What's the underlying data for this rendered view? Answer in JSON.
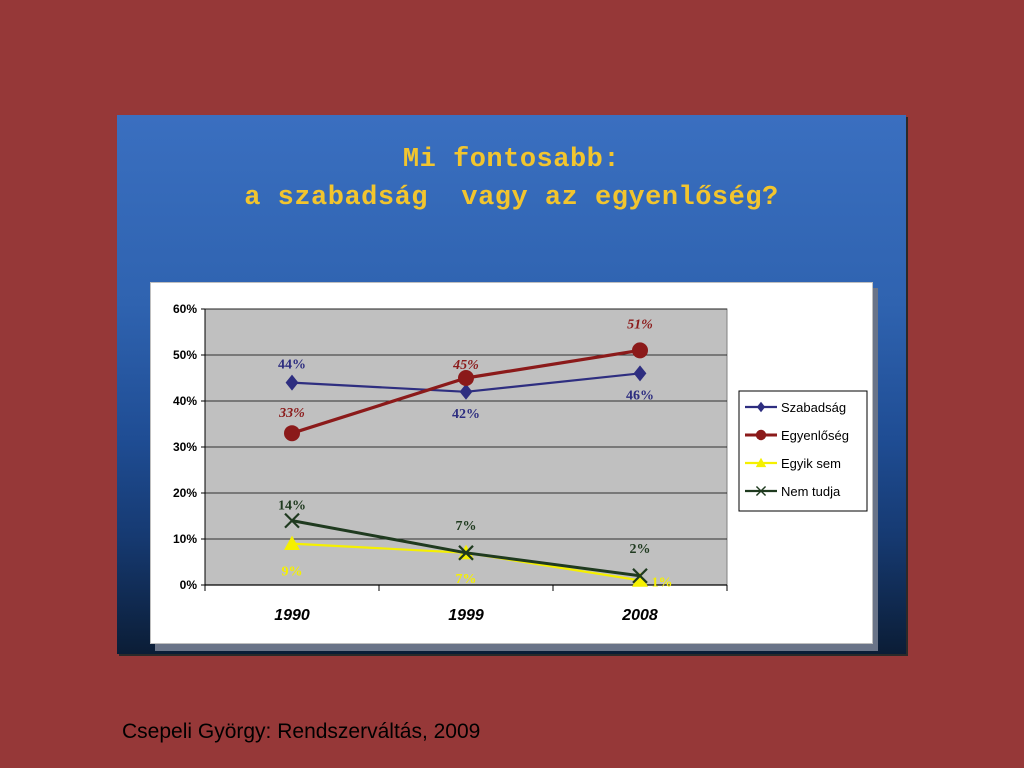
{
  "slide": {
    "title_lines": [
      "Mi fontosabb:",
      "a szabadság  vagy az egyenlőség?"
    ],
    "footer": "Csepeli György: Rendszerváltás, 2009"
  },
  "colors": {
    "background": "#963838",
    "title": "#f2c52e",
    "plot_area": "#c0c0c0"
  },
  "chart_data": {
    "type": "line",
    "categories": [
      "1990",
      "1999",
      "2008"
    ],
    "ylim": [
      0,
      60
    ],
    "yticks": [
      "0%",
      "10%",
      "20%",
      "30%",
      "40%",
      "50%",
      "60%"
    ],
    "grid": true,
    "legend_position": "right",
    "series": [
      {
        "name": "Szabadság",
        "values": [
          44,
          42,
          46
        ],
        "labels": [
          "44%",
          "42%",
          "46%"
        ],
        "color": "#2e2e80",
        "label_color": "#2e2e80",
        "marker": "diamond"
      },
      {
        "name": "Egyenlőség",
        "values": [
          33,
          45,
          51
        ],
        "labels": [
          "33%",
          "45%",
          "51%"
        ],
        "color": "#8b1a1a",
        "label_color": "#8b1a1a",
        "marker": "circle"
      },
      {
        "name": "Egyik sem",
        "values": [
          9,
          7,
          1
        ],
        "labels": [
          "9%",
          "7%",
          "1%"
        ],
        "color": "#f5f000",
        "label_color": "#f5f000",
        "marker": "triangle"
      },
      {
        "name": "Nem tudja",
        "values": [
          14,
          7,
          2
        ],
        "labels": [
          "14%",
          "7%",
          "2%"
        ],
        "color": "#1f3a1f",
        "label_color": "#1f3a1f",
        "marker": "x"
      }
    ]
  }
}
